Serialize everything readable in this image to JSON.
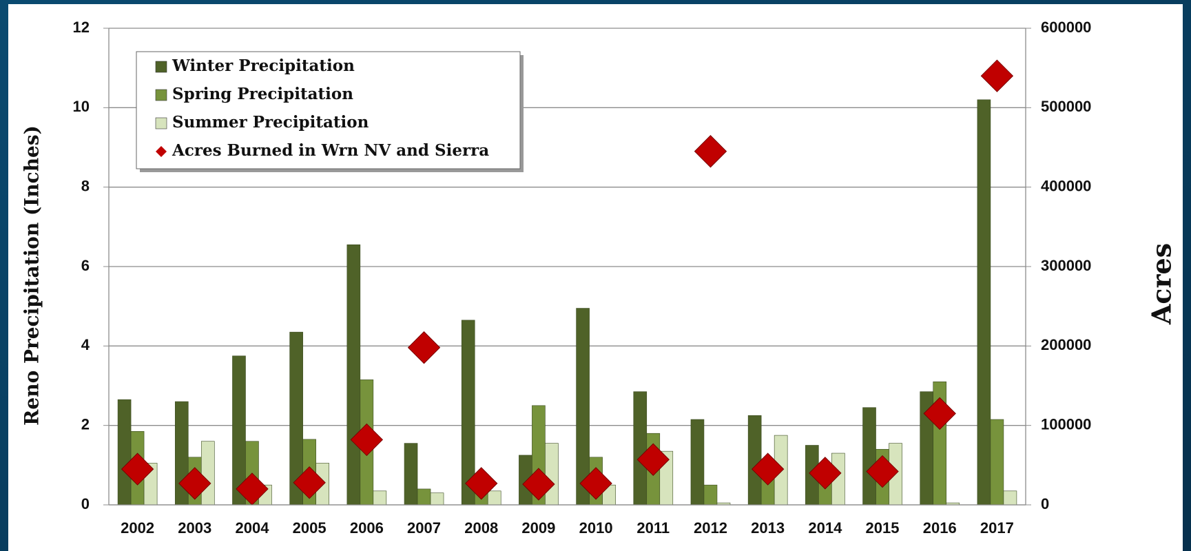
{
  "chart_data": {
    "type": "bar",
    "categories": [
      "2002",
      "2003",
      "2004",
      "2005",
      "2006",
      "2007",
      "2008",
      "2009",
      "2010",
      "2011",
      "2012",
      "2013",
      "2014",
      "2015",
      "2016",
      "2017"
    ],
    "series": [
      {
        "name": "Winter Precipitation",
        "color": "#4f6228",
        "values": [
          2.65,
          2.6,
          3.75,
          4.35,
          6.55,
          1.55,
          4.65,
          1.25,
          4.95,
          2.85,
          2.15,
          2.25,
          1.5,
          2.45,
          2.85,
          10.2
        ]
      },
      {
        "name": "Spring Precipitation",
        "color": "#77933c",
        "values": [
          1.85,
          1.2,
          1.6,
          1.65,
          3.15,
          0.4,
          0.4,
          2.5,
          1.2,
          1.8,
          0.5,
          0.9,
          1.0,
          1.4,
          3.1,
          2.15
        ]
      },
      {
        "name": "Summer Precipitation",
        "color": "#d7e4bd",
        "values": [
          1.05,
          1.6,
          0.5,
          1.05,
          0.35,
          0.3,
          0.35,
          1.55,
          0.5,
          1.35,
          0.05,
          1.75,
          1.3,
          1.55,
          0.05,
          0.35
        ]
      },
      {
        "name": "Acres Burned in Wrn NV and Sierra",
        "color": "#c00000",
        "type": "scatter",
        "axis": "y2",
        "values": [
          45000,
          27000,
          20000,
          28000,
          82000,
          198000,
          27000,
          26000,
          27000,
          57000,
          445000,
          45000,
          40000,
          42000,
          115000,
          540000
        ]
      }
    ],
    "ylabel": "Reno Precipitation (Inches)",
    "y2label": "Acres",
    "ylim": [
      0,
      12
    ],
    "yticks": [
      0,
      2,
      4,
      6,
      8,
      10,
      12
    ],
    "y2lim": [
      0,
      600000
    ],
    "y2ticks": [
      0,
      100000,
      200000,
      300000,
      400000,
      500000,
      600000
    ],
    "grid": true,
    "legend": "upper left"
  }
}
